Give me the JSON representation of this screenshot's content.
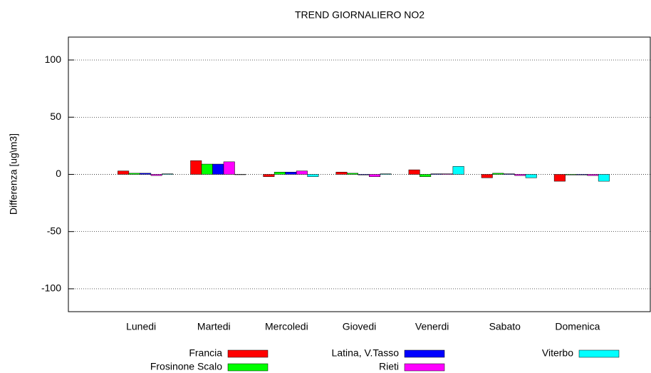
{
  "chart_data": {
    "type": "bar",
    "title": "TREND GIORNALIERO NO2",
    "y_label": "Differenza [ug\\m3]",
    "categories": [
      "Lunedi",
      "Martedi",
      "Mercoledi",
      "Giovedi",
      "Venerdi",
      "Sabato",
      "Domenica"
    ],
    "series": [
      {
        "name": "Francia",
        "color": "#ff0000",
        "values": [
          3,
          12,
          -2,
          2,
          4,
          -3,
          -6
        ]
      },
      {
        "name": "Frosinone Scalo",
        "color": "#00ff00",
        "values": [
          1,
          9,
          2,
          1,
          -2,
          1,
          -0.5
        ]
      },
      {
        "name": "Latina, V.Tasso",
        "color": "#0000ff",
        "values": [
          1,
          9,
          2,
          -0.5,
          0.5,
          0.5,
          -0.5
        ]
      },
      {
        "name": "Rieti",
        "color": "#ff00ff",
        "values": [
          -1,
          11,
          3,
          -2,
          0.5,
          -1,
          -1
        ]
      },
      {
        "name": "Viterbo",
        "color": "#00ffff",
        "values": [
          0.5,
          0,
          -2,
          0.5,
          7,
          -3,
          -6
        ]
      }
    ],
    "ylim": [
      -120,
      120
    ],
    "yticks": [
      -100,
      -50,
      0,
      50,
      100
    ],
    "grid": true
  }
}
